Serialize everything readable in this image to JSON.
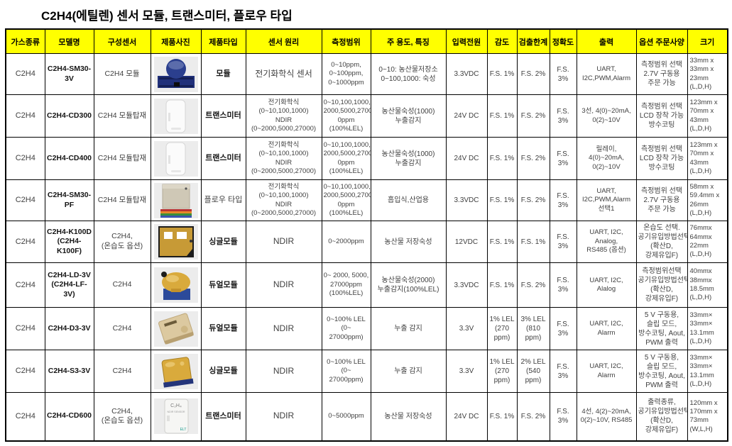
{
  "title": "C2H4(에틸렌) 센서 모듈, 트랜스미터, 플로우 타입",
  "table": {
    "colors": {
      "header_bg": "#ffff00",
      "border": "#000000",
      "body_text": "#404040"
    },
    "headers": [
      "가스종류",
      "모델명",
      "구성센서",
      "제품사진",
      "제품타입",
      "센서 원리",
      "측정범위",
      "주 용도, 특징",
      "입력전원",
      "감도",
      "검출한계",
      "정확도",
      "출력",
      "옵션 주문사양",
      "크기"
    ],
    "rows": [
      {
        "gas": "C2H4",
        "model": "C2H4-SM30-3V",
        "sensor": "C2H4 모듈",
        "photo": {
          "type": "module-blue"
        },
        "ptype": "모듈",
        "ptype_bold": true,
        "principle": "전기화학식 센서",
        "range": "0~10ppm,\n0~100ppm,\n0~1000ppm",
        "use": "0~10: 농산물저장소\n0~100,1000: 숙성",
        "power": "3.3VDC",
        "sensitivity": "F.S. 1%",
        "detection": "F.S. 2%",
        "accuracy": "F.S. 3%",
        "output": "UART,\nI2C,PWM,Alarm",
        "options": "측정범위 선택\n2.7V 구동용 주문 가능",
        "size": "33mm x\n33mm x\n23mm (L,D,H)"
      },
      {
        "gas": "C2H4",
        "model": "C2H4-CD300",
        "sensor": "C2H4 모듈탑재",
        "photo": {
          "type": "enclosure-white"
        },
        "ptype": "트랜스미터",
        "ptype_bold": true,
        "principle": "전기화학식\n(0~10,100,1000)\nNDIR\n(0~2000,5000,27000)",
        "range": "0~10,100,1000,\n2000,5000,2700\n0ppm\n(100%LEL)",
        "use": "농산물숙성(1000)\n누출감지",
        "power": "24V DC",
        "sensitivity": "F.S. 1%",
        "detection": "F.S. 2%",
        "accuracy": "F.S. 3%",
        "output": "3선, 4(0)~20mA,\n0(2)~10V",
        "options": "측정범위 선택\nLCD 장착 가능\n방수코팅",
        "size": "123mm x\n70mm x\n43mm (L,D,H)"
      },
      {
        "gas": "C2H4",
        "model": "C2H4-CD400",
        "sensor": "C2H4 모듈탑재",
        "photo": {
          "type": "enclosure-white"
        },
        "ptype": "트랜스미터",
        "ptype_bold": true,
        "principle": "전기화학식\n(0~10,100,1000)\nNDIR\n(0~2000,5000,27000)",
        "range": "0~10,100,1000,\n2000,5000,2700\n0ppm\n(100%LEL)",
        "use": "농산물숙성(1000)\n누출감지",
        "power": "24V DC",
        "sensitivity": "F.S. 1%",
        "detection": "F.S. 2%",
        "accuracy": "F.S. 3%",
        "output": "릴레이,\n4(0)~20mA,\n0(2)~10V",
        "options": "측정범위 선택\nLCD 장착 가능\n방수코팅",
        "size": "123mm x\n70mm x\n43mm (L,D,H)"
      },
      {
        "gas": "C2H4",
        "model": "C2H4-SM30-PF",
        "sensor": "C2H4 모듈탑재",
        "photo": {
          "type": "flow-beige"
        },
        "ptype": "플로우 타입",
        "ptype_bold": false,
        "principle": "전기화학식\n(0~10,100,1000)\nNDIR\n(0~2000,5000,27000)",
        "range": "0~10,100,1000,\n2000,5000,2700\n0ppm\n(100%LEL)",
        "use": "흡입식,산업용",
        "power": "3.3VDC",
        "sensitivity": "F.S. 1%",
        "detection": "F.S. 2%",
        "accuracy": "F.S. 3%",
        "output": "UART,\nI2C,PWM,Alarm\n선택1",
        "options": "측정범위 선택\n2.7V 구동용 주문 가능",
        "size": "58mm x\n59.4mm x\n26mm (L,D,H)"
      },
      {
        "gas": "C2H4",
        "model": "C2H4-K100D\n(C2H4-K100F)",
        "sensor": "C2H4,\n(온습도 옵션)",
        "photo": {
          "type": "pcb-gold-windows"
        },
        "ptype": "싱글모듈",
        "ptype_bold": true,
        "principle": "NDIR",
        "range": "0~2000ppm",
        "use": "농산물 저장숙성",
        "power": "12VDC",
        "sensitivity": "F.S. 1%",
        "detection": "F.S. 1%",
        "accuracy": "F.S. 3%",
        "output": "UART, I2C,\nAnalog,\nRS485 (옵션)",
        "options": "온습도 선택.\n공기유입방법선택(확산D,강제유입F)",
        "size": "76mmx\n64mmx\n22mm (L,D,H)"
      },
      {
        "gas": "C2H4",
        "model": "C2H4-LD-3V\n(C2H4-LF-3V)",
        "sensor": "C2H4",
        "photo": {
          "type": "gold-on-blue"
        },
        "ptype": "듀얼모듈",
        "ptype_bold": true,
        "principle": "NDIR",
        "range": "0~ 2000, 5000,\n27000ppm\n(100%LEL)",
        "use": "농산물숙성(2000)\n누출감지(100%LEL)",
        "power": "3.3VDC",
        "sensitivity": "F.S. 1%",
        "detection": "F.S. 2%",
        "accuracy": "F.S. 3%",
        "output": "UART, I2C,\nAlalog",
        "options": "측정범위선택\n공기유입방법선택(확산D,강제유입F)",
        "size": "40mmx\n38mmx\n18.5mm\n(L,D,H)"
      },
      {
        "gas": "C2H4",
        "model": "C2H4-D3-3V",
        "sensor": "C2H4",
        "photo": {
          "type": "pcb-tan"
        },
        "ptype": "듀얼모듈",
        "ptype_bold": true,
        "principle": "NDIR",
        "range": "0~100% LEL\n(0~ 27000ppm)",
        "use": "누출 감지",
        "power": "3.3V",
        "sensitivity": "1% LEL\n(270\nppm)",
        "detection": "3% LEL\n(810\nppm)",
        "accuracy": "F.S. 3%",
        "output": "UART, I2C,\nAlarm",
        "options": "5 V 구동용, 슬립 모드, 방수코팅, Aout, PWM 출력",
        "size": "33mm×\n33mm×\n13.1mm\n(L,D,H)"
      },
      {
        "gas": "C2H4",
        "model": "C2H4-S3-3V",
        "sensor": "C2H4",
        "photo": {
          "type": "chip-gold"
        },
        "ptype": "싱글모듈",
        "ptype_bold": true,
        "principle": "NDIR",
        "range": "0~100% LEL\n(0~ 27000ppm)",
        "use": "누출 감지",
        "power": "3.3V",
        "sensitivity": "1% LEL\n(270\nppm)",
        "detection": "2% LEL\n(540\nppm)",
        "accuracy": "F.S. 3%",
        "output": "UART, I2C,\nAlarm",
        "options": "5 V 구동용, 슬립 모드, 방수코팅, Aout, PWM 출력",
        "size": "33mm×\n33mm×\n13.1mm\n(L,D,H)"
      },
      {
        "gas": "C2H4",
        "model": "C2H4-CD600",
        "sensor": "C2H4,\n(온습도 옵션)",
        "photo": {
          "type": "enclosure-labeled",
          "lines": [
            "C₂H₄",
            "NDIR SENSOR",
            "ELT"
          ]
        },
        "ptype": "트랜스미터",
        "ptype_bold": true,
        "principle": "NDIR",
        "range": "0~5000ppm",
        "use": "농산물 저장숙성",
        "power": "24V DC",
        "sensitivity": "F.S. 1%",
        "detection": "F.S. 2%",
        "accuracy": "F.S. 3%",
        "output": "4선, 4(2)~20mA,\n0(2)~10V, RS485",
        "options": "출력종류,\n공기유입방법선택(확산D,강제유입F)",
        "size": "120mm x\n170mm x\n73mm (W,L,H)"
      }
    ]
  }
}
